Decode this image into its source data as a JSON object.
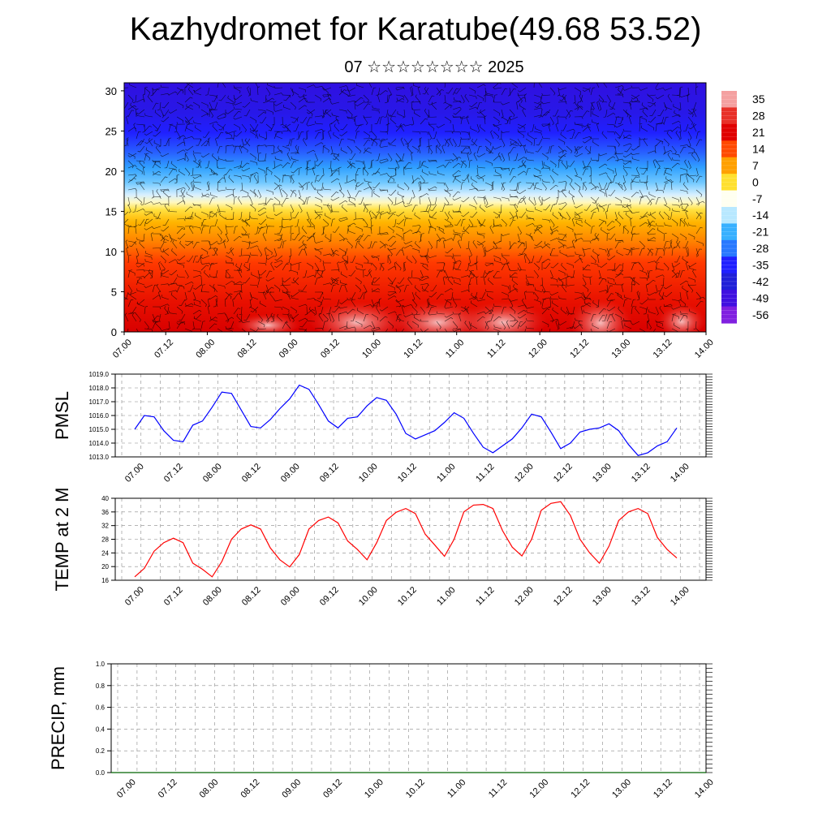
{
  "header": {
    "title": "Kazhydromet for Karatube(49.68 53.52)",
    "subtitle": "07 ☆☆☆☆☆☆☆☆ 2025"
  },
  "colors": {
    "pmsl_line": "#0000ff",
    "temp_line": "#ff0000",
    "precip_line": "#006400"
  },
  "chart_data": [
    {
      "type": "heatmap",
      "title": "",
      "x_tick_labels": [
        "07.00",
        "07.12",
        "08.00",
        "08.12",
        "09.00",
        "09.12",
        "10.00",
        "10.12",
        "11.00",
        "11.12",
        "12.00",
        "12.12",
        "13.00",
        "13.12",
        "14.00"
      ],
      "ylim": [
        0,
        31
      ],
      "y_ticks": [
        0,
        5,
        10,
        15,
        20,
        25,
        30
      ],
      "colorbar": {
        "labels": [
          "35",
          "28",
          "21",
          "14",
          "7",
          "0",
          "-7",
          "-14",
          "-21",
          "-28",
          "-35",
          "-42",
          "-49",
          "-56"
        ],
        "colors": [
          "#f4a0a0",
          "#e83028",
          "#e00000",
          "#ff4a00",
          "#ffa000",
          "#ffe030",
          "#fffff0",
          "#b8e8ff",
          "#38b0ff",
          "#2878ff",
          "#2020ff",
          "#2020d8",
          "#4010e0",
          "#8020e0"
        ]
      },
      "overlay": "wind barbs"
    },
    {
      "type": "line",
      "ylabel": "PMSL",
      "x_tick_labels": [
        "07.00",
        "07.12",
        "08.00",
        "08.12",
        "09.00",
        "09.12",
        "10.00",
        "10.12",
        "11.00",
        "11.12",
        "12.00",
        "12.12",
        "13.00",
        "13.12",
        "14.00"
      ],
      "ylim": [
        1013,
        1019
      ],
      "y_ticks": [
        "1013.0",
        "1014.0",
        "1015.0",
        "1016.0",
        "1017.0",
        "1018.0",
        "1019.0"
      ],
      "series": [
        {
          "values": [
            1015.0,
            1016.0,
            1015.9,
            1014.9,
            1014.2,
            1014.1,
            1015.3,
            1015.6,
            1016.6,
            1017.7,
            1017.6,
            1016.4,
            1015.2,
            1015.1,
            1015.7,
            1016.5,
            1017.2,
            1018.2,
            1017.9,
            1016.8,
            1015.6,
            1015.1,
            1015.8,
            1015.9,
            1016.7,
            1017.3,
            1017.1,
            1016.1,
            1014.7,
            1014.3,
            1014.6,
            1014.9,
            1015.5,
            1016.2,
            1015.8,
            1014.7,
            1013.7,
            1013.3,
            1013.8,
            1014.3,
            1015.1,
            1016.1,
            1015.9,
            1014.8,
            1013.6,
            1014.0,
            1014.8,
            1015.0,
            1015.1,
            1015.4,
            1014.9,
            1013.9,
            1013.1,
            1013.3,
            1013.8,
            1014.1,
            1015.1
          ]
        }
      ]
    },
    {
      "type": "line",
      "ylabel": "TEMP at 2 M",
      "x_tick_labels": [
        "07.00",
        "07.12",
        "08.00",
        "08.12",
        "09.00",
        "09.12",
        "10.00",
        "10.12",
        "11.00",
        "11.12",
        "12.00",
        "12.12",
        "13.00",
        "13.12",
        "14.00"
      ],
      "ylim": [
        16,
        40
      ],
      "y_ticks": [
        "16",
        "20",
        "24",
        "28",
        "32",
        "36",
        "40"
      ],
      "series": [
        {
          "values": [
            17.0,
            19.5,
            24.5,
            27.0,
            28.3,
            27.0,
            21.0,
            19.2,
            17.0,
            21.5,
            28.0,
            31.0,
            32.2,
            31.0,
            25.5,
            22.0,
            19.9,
            23.5,
            31.0,
            33.5,
            34.5,
            32.8,
            27.5,
            25.0,
            22.0,
            27.0,
            33.5,
            35.9,
            37.0,
            35.5,
            29.5,
            26.3,
            23.0,
            28.0,
            36.0,
            38.0,
            38.2,
            37.0,
            30.5,
            25.7,
            23.1,
            28.0,
            36.5,
            38.5,
            39.0,
            35.0,
            28.0,
            24.0,
            21.0,
            26.0,
            33.5,
            36.0,
            37.0,
            35.5,
            28.5,
            25.0,
            22.5
          ]
        }
      ]
    },
    {
      "type": "line",
      "ylabel": "PRECIP, mm",
      "x_tick_labels": [
        "07.00",
        "07.12",
        "08.00",
        "08.12",
        "09.00",
        "09.12",
        "10.00",
        "10.12",
        "11.00",
        "11.12",
        "12.00",
        "12.12",
        "13.00",
        "13.12",
        "14.00"
      ],
      "ylim": [
        0,
        1
      ],
      "y_ticks": [
        "0.0",
        "0.2",
        "0.4",
        "0.6",
        "0.8",
        "1.0"
      ],
      "series": [
        {
          "values": [
            0,
            0,
            0,
            0,
            0,
            0,
            0,
            0,
            0,
            0,
            0,
            0,
            0,
            0,
            0,
            0,
            0,
            0,
            0,
            0,
            0,
            0,
            0,
            0,
            0,
            0,
            0,
            0,
            0,
            0,
            0,
            0,
            0,
            0,
            0,
            0,
            0,
            0,
            0,
            0,
            0,
            0,
            0,
            0,
            0,
            0,
            0,
            0,
            0,
            0,
            0,
            0,
            0,
            0,
            0,
            0,
            0
          ]
        }
      ]
    }
  ]
}
